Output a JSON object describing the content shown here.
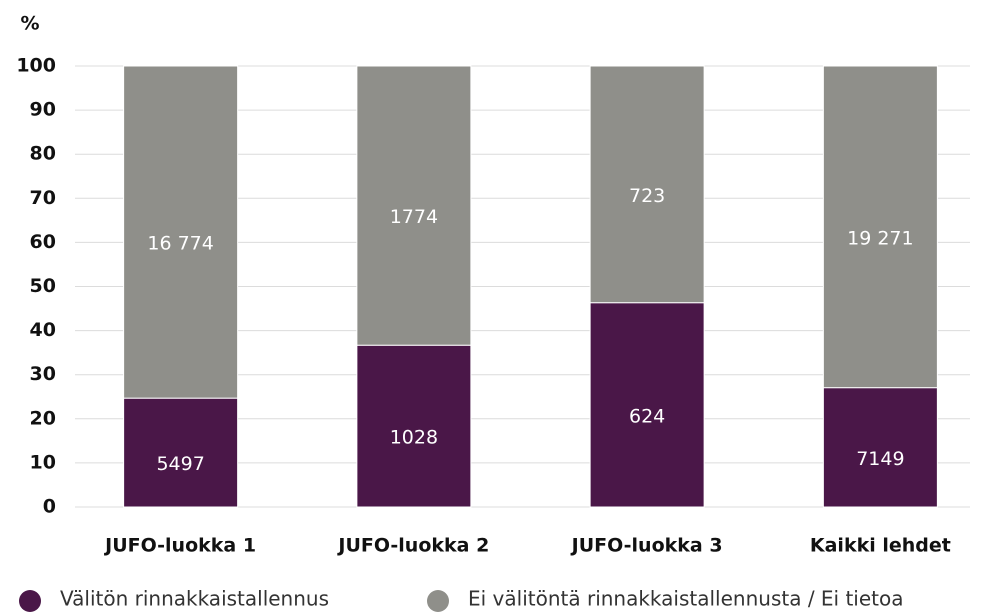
{
  "chart_data": {
    "type": "bar",
    "stacking": "percent",
    "y_axis_label": "%",
    "categories": [
      "JUFO-luokka 1",
      "JUFO-luokka 2",
      "JUFO-luokka 3",
      "Kaikki lehdet"
    ],
    "series": [
      {
        "name": "Välitön rinnakkaistallennus",
        "color": "#4a1748",
        "values": [
          5497,
          1028,
          624,
          7149
        ]
      },
      {
        "name": "Ei välitöntä rinnakkaistallennusta / Ei tietoa",
        "color": "#8f8f8a",
        "values": [
          16774,
          1774,
          723,
          19271
        ],
        "value_labels": [
          "16 774",
          "1774",
          "723",
          "19 271"
        ]
      }
    ],
    "ylim": [
      0,
      100
    ],
    "yticks": [
      0,
      10,
      20,
      30,
      40,
      50,
      60,
      70,
      80,
      90,
      100
    ],
    "grid": true,
    "legend": "bottom"
  }
}
